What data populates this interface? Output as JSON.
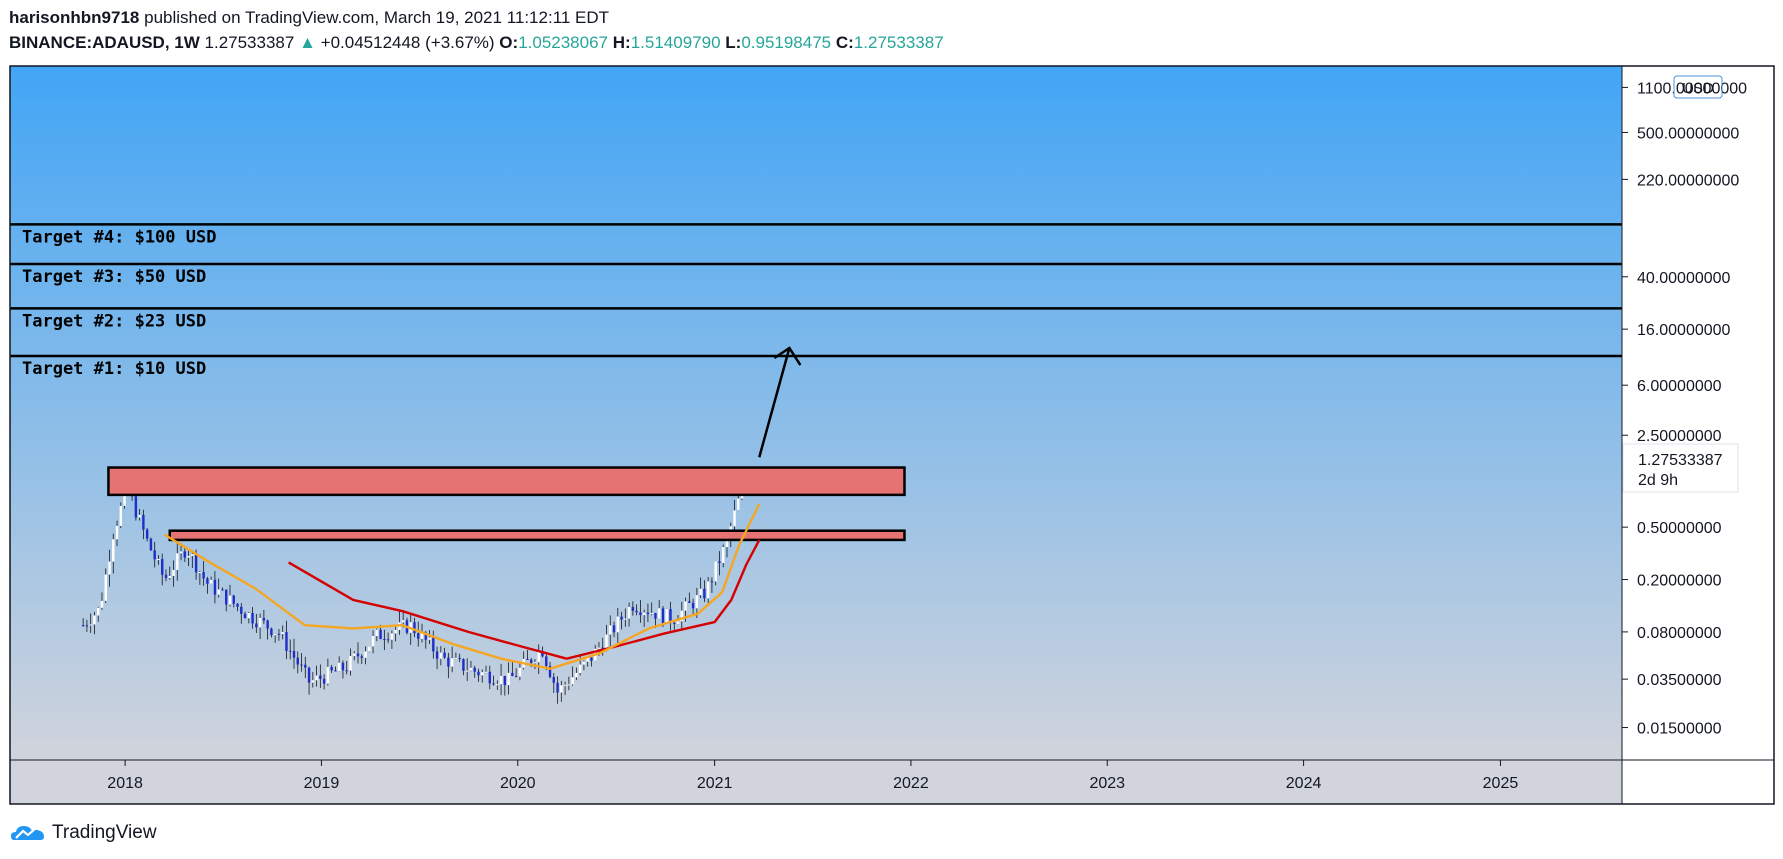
{
  "header": {
    "author": "harisonhbn9718",
    "published_text": "published on TradingView.com, March 19, 2021 11:12:11 EDT",
    "symbol": "BINANCE:ADAUSD, 1W",
    "last": "1.27533387",
    "change": "+0.04512448 (+3.67%)",
    "open_label": "O:",
    "open": "1.05238067",
    "high_label": "H:",
    "high": "1.51409790",
    "low_label": "L:",
    "low": "0.95198475",
    "close_label": "C:",
    "close": "1.27533387"
  },
  "colors": {
    "bg_top": "#42a5f5",
    "bg_bottom": "#d1d4dc",
    "zone_fill": "#e57373",
    "ema_fast": "#f5a623",
    "ema_slow": "#d50000",
    "candle_up": "#ffffff",
    "candle_down": "#1e2ec8",
    "positive": "#26a69a"
  },
  "chart_data": {
    "type": "line",
    "y_scale": "log",
    "currency_badge": "USD",
    "ylim": [
      0.0085,
      1600
    ],
    "xlim": [
      "2017-06-01",
      "2025-08-15"
    ],
    "y_ticks": [
      {
        "value": 1100,
        "label": "1100.00000000"
      },
      {
        "value": 500,
        "label": "500.00000000"
      },
      {
        "value": 220,
        "label": "220.00000000"
      },
      {
        "value": 40,
        "label": "40.00000000"
      },
      {
        "value": 16,
        "label": "16.00000000"
      },
      {
        "value": 6,
        "label": "6.00000000"
      },
      {
        "value": 2.5,
        "label": "2.50000000"
      },
      {
        "value": 0.5,
        "label": "0.50000000"
      },
      {
        "value": 0.2,
        "label": "0.20000000"
      },
      {
        "value": 0.08,
        "label": "0.08000000"
      },
      {
        "value": 0.035,
        "label": "0.03500000"
      },
      {
        "value": 0.015,
        "label": "0.01500000"
      }
    ],
    "x_ticks": [
      {
        "date": "2018-01-01",
        "label": "2018"
      },
      {
        "date": "2019-01-01",
        "label": "2019"
      },
      {
        "date": "2020-01-01",
        "label": "2020"
      },
      {
        "date": "2021-01-01",
        "label": "2021"
      },
      {
        "date": "2022-01-01",
        "label": "2022"
      },
      {
        "date": "2023-01-01",
        "label": "2023"
      },
      {
        "date": "2024-01-01",
        "label": "2024"
      },
      {
        "date": "2025-01-01",
        "label": "2025"
      }
    ],
    "targets": [
      {
        "value": 100,
        "text": "Target #4: $100 USD",
        "label": "100.00000000"
      },
      {
        "value": 50,
        "text": "Target #3: $50 USD",
        "label": "50.00000000"
      },
      {
        "value": 23,
        "text": "Target #2: $23 USD",
        "label": "23.00000000"
      },
      {
        "value": 10,
        "text": "Target #1: $10 USD",
        "label": "10.00000000"
      }
    ],
    "zones": [
      {
        "from_date": "2017-12-01",
        "to_date": "2021-12-20",
        "low": 0.88,
        "high": 1.42
      },
      {
        "from_date": "2018-03-25",
        "to_date": "2021-12-20",
        "low": 0.4,
        "high": 0.47
      }
    ],
    "last_price": {
      "value": 1.27533387,
      "label": "1.27533387",
      "countdown": "2d 9h"
    },
    "arrow": {
      "from_date": "2021-03-25",
      "from_value": 1.7,
      "to_date": "2021-05-20",
      "to_value": 11.5
    },
    "ema_fast": {
      "dates": [
        "2018-03-15",
        "2018-06-01",
        "2018-09-01",
        "2018-12-01",
        "2019-03-01",
        "2019-06-01",
        "2019-09-01",
        "2019-12-01",
        "2020-03-01",
        "2020-06-01",
        "2020-09-01",
        "2020-12-01",
        "2021-01-15",
        "2021-02-15",
        "2021-03-25"
      ],
      "values": [
        0.44,
        0.28,
        0.17,
        0.09,
        0.085,
        0.09,
        0.065,
        0.05,
        0.042,
        0.055,
        0.085,
        0.11,
        0.16,
        0.36,
        0.75
      ]
    },
    "ema_slow": {
      "dates": [
        "2018-11-01",
        "2019-03-01",
        "2019-06-01",
        "2019-10-01",
        "2020-01-01",
        "2020-04-01",
        "2020-07-01",
        "2020-10-01",
        "2021-01-01",
        "2021-02-01",
        "2021-03-01",
        "2021-03-25"
      ],
      "values": [
        0.27,
        0.14,
        0.115,
        0.08,
        0.063,
        0.05,
        0.062,
        0.078,
        0.095,
        0.14,
        0.26,
        0.4
      ]
    },
    "price_path": {
      "dates": [
        "2017-10-15",
        "2017-11-15",
        "2017-12-10",
        "2018-01-05",
        "2018-02-10",
        "2018-03-15",
        "2018-04-25",
        "2018-06-01",
        "2018-08-15",
        "2018-10-15",
        "2018-12-10",
        "2019-02-15",
        "2019-04-15",
        "2019-06-15",
        "2019-08-15",
        "2019-10-15",
        "2019-12-15",
        "2020-02-15",
        "2020-03-15",
        "2020-05-15",
        "2020-08-01",
        "2020-10-15",
        "2020-12-15",
        "2021-01-20",
        "2021-02-20",
        "2021-03-19"
      ],
      "values": [
        0.09,
        0.12,
        0.45,
        1.0,
        0.4,
        0.2,
        0.35,
        0.19,
        0.11,
        0.078,
        0.033,
        0.043,
        0.075,
        0.09,
        0.05,
        0.04,
        0.034,
        0.06,
        0.028,
        0.05,
        0.13,
        0.1,
        0.16,
        0.35,
        0.95,
        1.275
      ]
    }
  },
  "footer": {
    "brand": "TradingView"
  }
}
